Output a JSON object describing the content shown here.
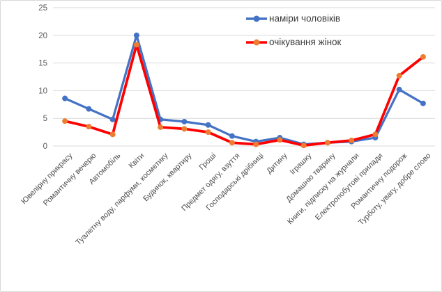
{
  "chart_data": {
    "type": "line",
    "title": "",
    "xlabel": "",
    "ylabel": "",
    "ylim": [
      0,
      25
    ],
    "yticks": [
      0,
      5,
      10,
      15,
      20,
      25
    ],
    "grid": true,
    "legend_position": "top-center-overlay",
    "categories": [
      "Ювелірну прикрасу",
      "Романтичну вечерю",
      "Автомобіль",
      "Квіти",
      "Туалетну воду, парфуми, косметику",
      "Будинок, квартиру",
      "Гроші",
      "Предмет одягу, взуття",
      "Господарські дрібниці",
      "Дитину",
      "Іграшку",
      "Домашню тварину",
      "Книги, підписку на журнали",
      "Електропобутові прилади",
      "Романтичну подорож",
      "Турботу, увагу, добре слово"
    ],
    "series": [
      {
        "name": "наміри чоловіків",
        "color": "#4472C4",
        "marker_color": "#4472C4",
        "values": [
          8.6,
          6.7,
          4.8,
          20.0,
          4.8,
          4.4,
          3.8,
          1.8,
          0.8,
          1.5,
          0.3,
          0.6,
          0.8,
          1.5,
          10.2,
          7.7
        ]
      },
      {
        "name": "очікування жінок",
        "color": "#FF0000",
        "marker_color": "#ED7D31",
        "values": [
          4.5,
          3.5,
          2.1,
          18.3,
          3.4,
          3.1,
          2.5,
          0.6,
          0.3,
          1.1,
          0.1,
          0.6,
          1.0,
          2.1,
          12.7,
          16.1
        ]
      }
    ],
    "axis": {
      "tick_color": "#595959",
      "gridline_color": "#d9d9d9"
    }
  }
}
